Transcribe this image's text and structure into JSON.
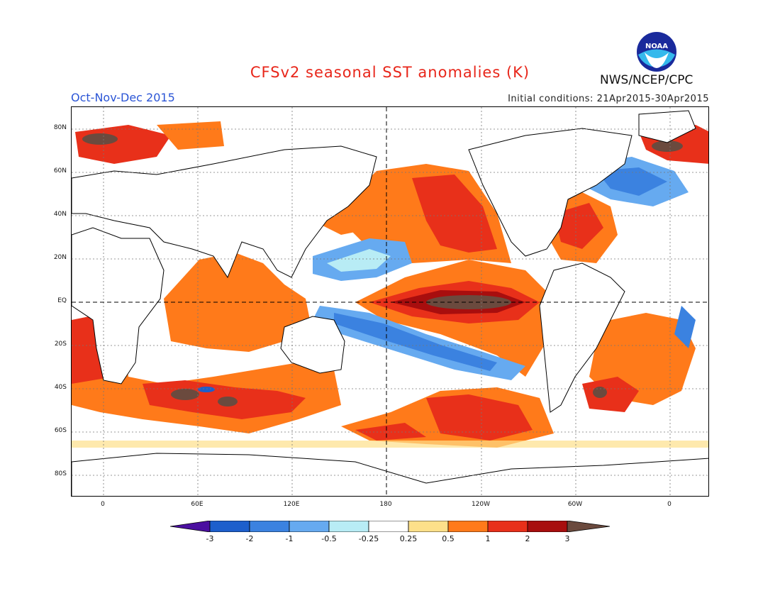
{
  "header": {
    "title": "CFSv2 seasonal SST anomalies (K)",
    "season": "Oct-Nov-Dec 2015",
    "initial_conditions": "Initial conditions: 21Apr2015-30Apr2015",
    "agency": "NWS/NCEP/CPC",
    "logo_text": "NOAA"
  },
  "map": {
    "lat_labels": [
      "80N",
      "60N",
      "40N",
      "20N",
      "EQ",
      "20S",
      "40S",
      "60S",
      "80S"
    ],
    "lon_labels": [
      "0",
      "60E",
      "120E",
      "180",
      "120W",
      "60W",
      "0"
    ]
  },
  "colorbar": {
    "labels": [
      "-3",
      "-2",
      "-1",
      "-0.5",
      "-0.25",
      "0.25",
      "0.5",
      "1",
      "2",
      "3"
    ],
    "colors": [
      "#4b0fa0",
      "#1d5fcc",
      "#3b82e0",
      "#66aaf0",
      "#b8ecf5",
      "#ffffff",
      "#fde08a",
      "#ff7a1a",
      "#e8301a",
      "#a80e0e",
      "#6b4a3e"
    ]
  }
}
